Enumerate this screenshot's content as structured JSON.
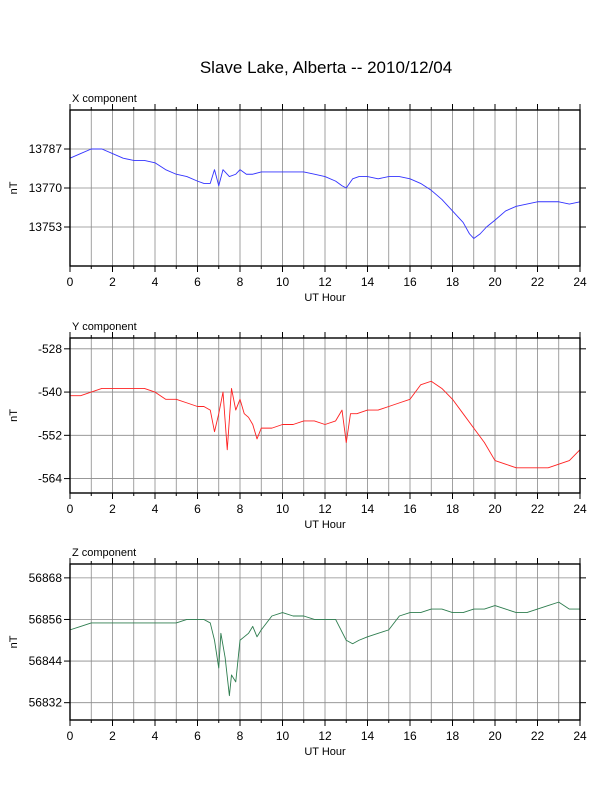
{
  "title": "Slave Lake, Alberta -- 2010/12/04",
  "chart_data": [
    {
      "type": "line",
      "title": "X component",
      "xlabel": "UT Hour",
      "ylabel": "nT",
      "xlim": [
        0,
        24
      ],
      "ylim": [
        13736,
        13804
      ],
      "x_ticks": [
        0,
        2,
        4,
        6,
        8,
        10,
        12,
        14,
        16,
        18,
        20,
        22,
        24
      ],
      "y_ticks": [
        13753,
        13770,
        13787
      ],
      "grid": true,
      "color": "#3333ff",
      "series": [
        {
          "x": [
            0,
            0.5,
            1,
            1.5,
            2,
            2.5,
            3,
            3.5,
            4,
            4.5,
            5,
            5.5,
            6,
            6.3,
            6.6,
            6.8,
            7,
            7.2,
            7.5,
            7.8,
            8,
            8.3,
            8.6,
            9,
            9.5,
            10,
            10.5,
            11,
            11.5,
            12,
            12.5,
            12.8,
            13,
            13.3,
            13.6,
            14,
            14.5,
            15,
            15.5,
            16,
            16.5,
            17,
            17.5,
            18,
            18.5,
            18.8,
            19,
            19.3,
            19.6,
            20,
            20.5,
            21,
            21.5,
            22,
            22.5,
            23,
            23.5,
            24
          ],
          "y": [
            13783,
            13785,
            13787,
            13787,
            13785,
            13783,
            13782,
            13782,
            13781,
            13778,
            13776,
            13775,
            13773,
            13772,
            13772,
            13778,
            13771,
            13778,
            13775,
            13776,
            13778,
            13776,
            13776,
            13777,
            13777,
            13777,
            13777,
            13777,
            13776,
            13775,
            13773,
            13771,
            13770,
            13774,
            13775,
            13775,
            13774,
            13775,
            13775,
            13774,
            13772,
            13769,
            13765,
            13760,
            13755,
            13750,
            13748,
            13750,
            13753,
            13756,
            13760,
            13762,
            13763,
            13764,
            13764,
            13764,
            13763,
            13764
          ]
        }
      ]
    },
    {
      "type": "line",
      "title": "Y component",
      "xlabel": "UT Hour",
      "ylabel": "nT",
      "xlim": [
        0,
        24
      ],
      "ylim": [
        -568,
        -525
      ],
      "x_ticks": [
        0,
        2,
        4,
        6,
        8,
        10,
        12,
        14,
        16,
        18,
        20,
        22,
        24
      ],
      "y_ticks": [
        -528,
        -540,
        -552,
        -564
      ],
      "grid": true,
      "color": "#ff2222",
      "series": [
        {
          "x": [
            0,
            0.5,
            1,
            1.5,
            2,
            2.5,
            3,
            3.5,
            4,
            4.5,
            5,
            5.5,
            6,
            6.3,
            6.6,
            6.8,
            7,
            7.2,
            7.4,
            7.6,
            7.8,
            8,
            8.2,
            8.4,
            8.6,
            8.8,
            9,
            9.5,
            10,
            10.5,
            11,
            11.5,
            12,
            12.5,
            12.8,
            13,
            13.2,
            13.5,
            14,
            14.5,
            15,
            15.5,
            16,
            16.5,
            17,
            17.5,
            18,
            18.5,
            19,
            19.5,
            20,
            20.5,
            21,
            21.5,
            22,
            22.5,
            23,
            23.5,
            24
          ],
          "y": [
            -541,
            -541,
            -540,
            -539,
            -539,
            -539,
            -539,
            -539,
            -540,
            -542,
            -542,
            -543,
            -544,
            -544,
            -545,
            -551,
            -546,
            -540,
            -556,
            -539,
            -545,
            -542,
            -546,
            -547,
            -549,
            -553,
            -550,
            -550,
            -549,
            -549,
            -548,
            -548,
            -549,
            -548,
            -545,
            -554,
            -546,
            -546,
            -545,
            -545,
            -544,
            -543,
            -542,
            -538,
            -537,
            -539,
            -542,
            -546,
            -550,
            -554,
            -559,
            -560,
            -561,
            -561,
            -561,
            -561,
            -560,
            -559,
            -556
          ]
        }
      ]
    },
    {
      "type": "line",
      "title": "Z component",
      "xlabel": "UT Hour",
      "ylabel": "nT",
      "xlim": [
        0,
        24
      ],
      "ylim": [
        56827,
        56872
      ],
      "x_ticks": [
        0,
        2,
        4,
        6,
        8,
        10,
        12,
        14,
        16,
        18,
        20,
        22,
        24
      ],
      "y_ticks": [
        56832,
        56844,
        56856,
        56868
      ],
      "grid": true,
      "color": "#2e7d4f",
      "series": [
        {
          "x": [
            0,
            0.5,
            1,
            1.5,
            2,
            2.5,
            3,
            3.5,
            4,
            4.5,
            5,
            5.5,
            6,
            6.3,
            6.6,
            6.8,
            7,
            7.1,
            7.3,
            7.5,
            7.6,
            7.8,
            8,
            8.2,
            8.4,
            8.6,
            8.8,
            9,
            9.5,
            10,
            10.5,
            11,
            11.5,
            12,
            12.5,
            13,
            13.3,
            13.6,
            14,
            14.5,
            15,
            15.5,
            16,
            16.5,
            17,
            17.5,
            18,
            18.5,
            19,
            19.5,
            20,
            20.5,
            21,
            21.5,
            22,
            22.5,
            23,
            23.5,
            24
          ],
          "y": [
            56853,
            56854,
            56855,
            56855,
            56855,
            56855,
            56855,
            56855,
            56855,
            56855,
            56855,
            56856,
            56856,
            56856,
            56855,
            56850,
            56842,
            56852,
            56845,
            56834,
            56840,
            56838,
            56850,
            56851,
            56852,
            56854,
            56851,
            56853,
            56857,
            56858,
            56857,
            56857,
            56856,
            56856,
            56856,
            56850,
            56849,
            56850,
            56851,
            56852,
            56853,
            56857,
            56858,
            56858,
            56859,
            56859,
            56858,
            56858,
            56859,
            56859,
            56860,
            56859,
            56858,
            56858,
            56859,
            56860,
            56861,
            56859,
            56859
          ]
        }
      ]
    }
  ]
}
